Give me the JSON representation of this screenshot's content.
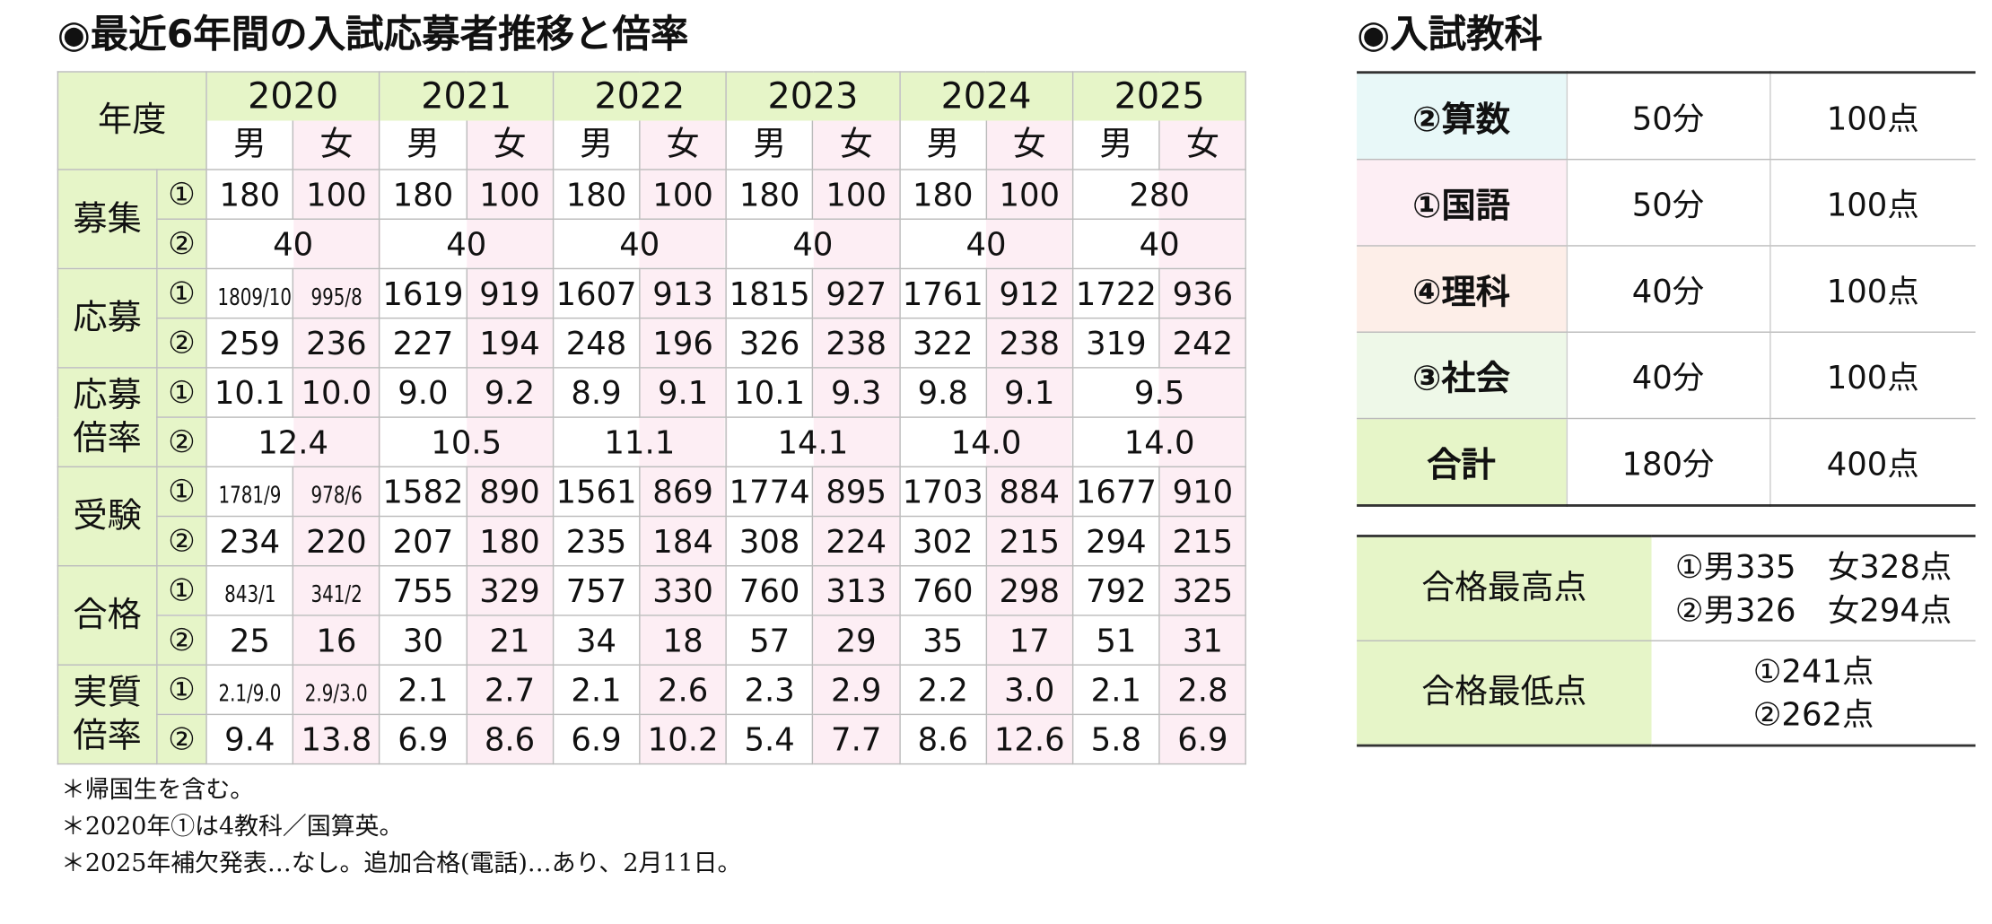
{
  "left": {
    "title": "◉最近6年間の入試応募者推移と倍率",
    "header_label": "年度",
    "years": [
      "2020",
      "2021",
      "2022",
      "2023",
      "2024",
      "2025"
    ],
    "genders": [
      "男",
      "女"
    ],
    "marks": [
      "①",
      "②"
    ],
    "rows": [
      {
        "label": [
          "募集"
        ],
        "years": [
          [
            [
              "180",
              "100"
            ],
            [
              "40"
            ]
          ],
          [
            [
              "180",
              "100"
            ],
            [
              "40"
            ]
          ],
          [
            [
              "180",
              "100"
            ],
            [
              "40"
            ]
          ],
          [
            [
              "180",
              "100"
            ],
            [
              "40"
            ]
          ],
          [
            [
              "180",
              "100"
            ],
            [
              "40"
            ]
          ],
          [
            [
              "280"
            ],
            [
              "40"
            ]
          ]
        ]
      },
      {
        "label": [
          "応募"
        ],
        "years": [
          [
            [
              "1809/10",
              "995/8"
            ],
            [
              "259",
              "236"
            ]
          ],
          [
            [
              "1619",
              "919"
            ],
            [
              "227",
              "194"
            ]
          ],
          [
            [
              "1607",
              "913"
            ],
            [
              "248",
              "196"
            ]
          ],
          [
            [
              "1815",
              "927"
            ],
            [
              "326",
              "238"
            ]
          ],
          [
            [
              "1761",
              "912"
            ],
            [
              "322",
              "238"
            ]
          ],
          [
            [
              "1722",
              "936"
            ],
            [
              "319",
              "242"
            ]
          ]
        ]
      },
      {
        "label": [
          "応募",
          "倍率"
        ],
        "years": [
          [
            [
              "10.1",
              "10.0"
            ],
            [
              "12.4"
            ]
          ],
          [
            [
              "9.0",
              "9.2"
            ],
            [
              "10.5"
            ]
          ],
          [
            [
              "8.9",
              "9.1"
            ],
            [
              "11.1"
            ]
          ],
          [
            [
              "10.1",
              "9.3"
            ],
            [
              "14.1"
            ]
          ],
          [
            [
              "9.8",
              "9.1"
            ],
            [
              "14.0"
            ]
          ],
          [
            [
              "9.5"
            ],
            [
              "14.0"
            ]
          ]
        ]
      },
      {
        "label": [
          "受験"
        ],
        "years": [
          [
            [
              "1781/9",
              "978/6"
            ],
            [
              "234",
              "220"
            ]
          ],
          [
            [
              "1582",
              "890"
            ],
            [
              "207",
              "180"
            ]
          ],
          [
            [
              "1561",
              "869"
            ],
            [
              "235",
              "184"
            ]
          ],
          [
            [
              "1774",
              "895"
            ],
            [
              "308",
              "224"
            ]
          ],
          [
            [
              "1703",
              "884"
            ],
            [
              "302",
              "215"
            ]
          ],
          [
            [
              "1677",
              "910"
            ],
            [
              "294",
              "215"
            ]
          ]
        ]
      },
      {
        "label": [
          "合格"
        ],
        "years": [
          [
            [
              "843/1",
              "341/2"
            ],
            [
              "25",
              "16"
            ]
          ],
          [
            [
              "755",
              "329"
            ],
            [
              "30",
              "21"
            ]
          ],
          [
            [
              "757",
              "330"
            ],
            [
              "34",
              "18"
            ]
          ],
          [
            [
              "760",
              "313"
            ],
            [
              "57",
              "29"
            ]
          ],
          [
            [
              "760",
              "298"
            ],
            [
              "35",
              "17"
            ]
          ],
          [
            [
              "792",
              "325"
            ],
            [
              "51",
              "31"
            ]
          ]
        ]
      },
      {
        "label": [
          "実質",
          "倍率"
        ],
        "years": [
          [
            [
              "2.1/9.0",
              "2.9/3.0"
            ],
            [
              "9.4",
              "13.8"
            ]
          ],
          [
            [
              "2.1",
              "2.7"
            ],
            [
              "6.9",
              "8.6"
            ]
          ],
          [
            [
              "2.1",
              "2.6"
            ],
            [
              "6.9",
              "10.2"
            ]
          ],
          [
            [
              "2.3",
              "2.9"
            ],
            [
              "5.4",
              "7.7"
            ]
          ],
          [
            [
              "2.2",
              "3.0"
            ],
            [
              "8.6",
              "12.6"
            ]
          ],
          [
            [
              "2.1",
              "2.8"
            ],
            [
              "5.8",
              "6.9"
            ]
          ]
        ]
      }
    ],
    "notes": [
      "＊帰国生を含む。",
      "＊2020年①は4教科／国算英。",
      "＊2025年補欠発表…なし。追加合格(電話)…あり、2月11日。"
    ]
  },
  "subjects": {
    "title": "◉入試教科",
    "rows": [
      [
        "②算数",
        "50分",
        "100点"
      ],
      [
        "①国語",
        "50分",
        "100点"
      ],
      [
        "④理科",
        "40分",
        "100点"
      ],
      [
        "③社会",
        "40分",
        "100点"
      ],
      [
        "合計",
        "180分",
        "400点"
      ]
    ]
  },
  "scores": {
    "rows": [
      {
        "label": "合格最高点",
        "lines": [
          "①男335　女328点",
          "②男326　女294点"
        ]
      },
      {
        "label": "合格最低点",
        "lines": [
          "①241点",
          "②262点"
        ]
      }
    ]
  }
}
